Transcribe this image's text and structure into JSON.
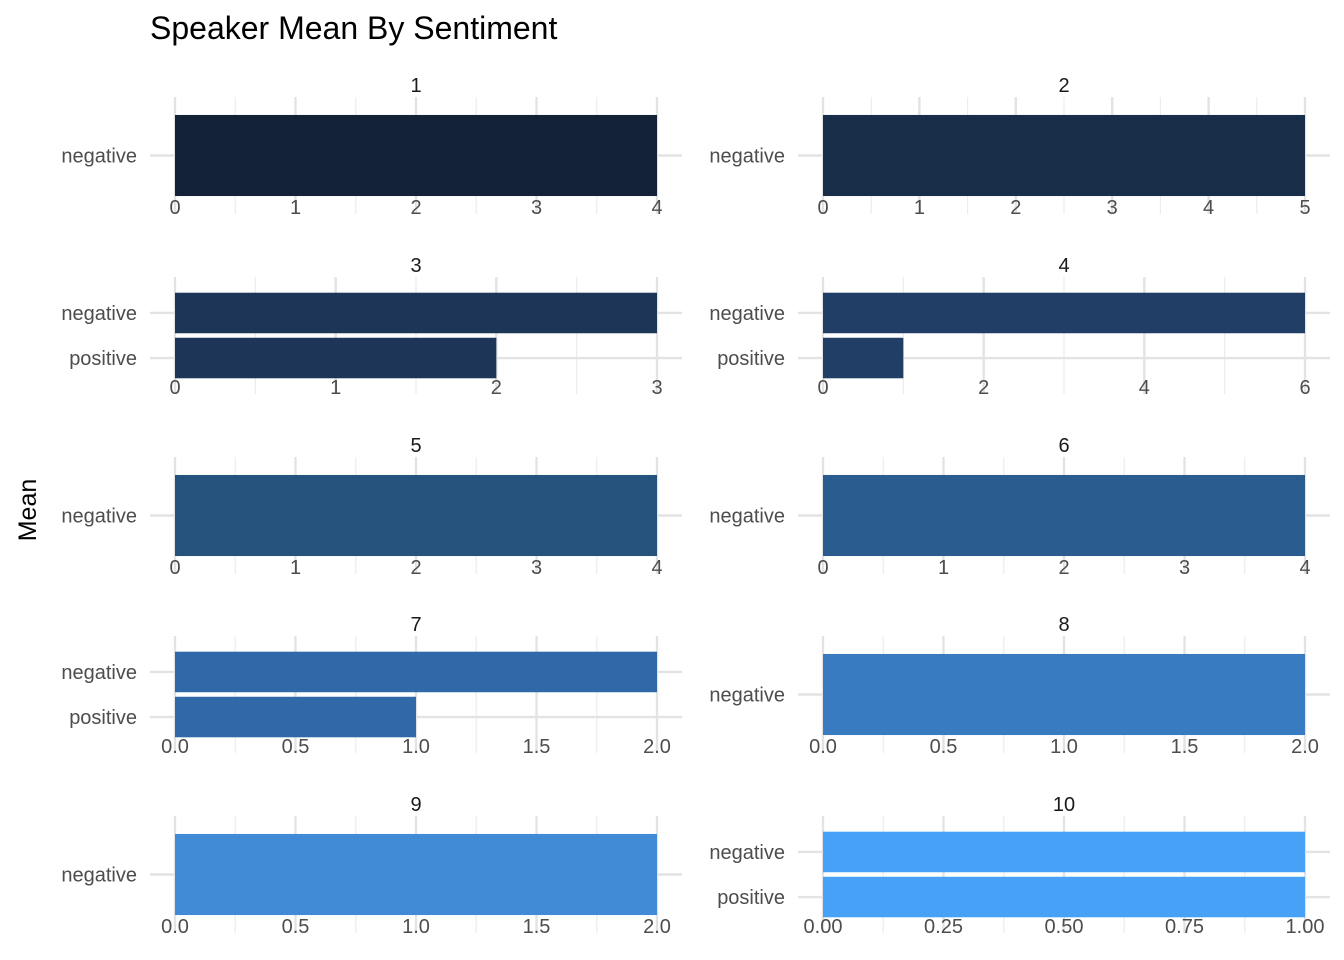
{
  "chart_data": {
    "type": "bar",
    "orientation": "horizontal",
    "title": "Speaker Mean By Sentiment",
    "xlabel": "",
    "ylabel": "Mean",
    "grid": true,
    "legend": "none",
    "panels": [
      {
        "label": "1",
        "categories": [
          "negative"
        ],
        "values": [
          4
        ],
        "xlim": [
          0,
          4
        ],
        "ticks": [
          "0",
          "1",
          "2",
          "3",
          "4"
        ],
        "color": "#132236"
      },
      {
        "label": "2",
        "categories": [
          "negative"
        ],
        "values": [
          5
        ],
        "xlim": [
          0,
          5
        ],
        "ticks": [
          "0",
          "1",
          "2",
          "3",
          "4",
          "5"
        ],
        "color": "#182e48"
      },
      {
        "label": "3",
        "categories": [
          "negative",
          "positive"
        ],
        "values": [
          3,
          2
        ],
        "xlim": [
          0,
          3
        ],
        "ticks": [
          "0",
          "1",
          "2",
          "3"
        ],
        "color": "#1d3556"
      },
      {
        "label": "4",
        "categories": [
          "negative",
          "positive"
        ],
        "values": [
          6,
          1
        ],
        "xlim": [
          0,
          6
        ],
        "ticks": [
          "0",
          "2",
          "4",
          "6"
        ],
        "color": "#213f66"
      },
      {
        "label": "5",
        "categories": [
          "negative"
        ],
        "values": [
          4
        ],
        "xlim": [
          0,
          4
        ],
        "ticks": [
          "0",
          "1",
          "2",
          "3",
          "4"
        ],
        "color": "#26527e"
      },
      {
        "label": "6",
        "categories": [
          "negative"
        ],
        "values": [
          4
        ],
        "xlim": [
          0,
          4
        ],
        "ticks": [
          "0",
          "1",
          "2",
          "3",
          "4"
        ],
        "color": "#2b5c8f"
      },
      {
        "label": "7",
        "categories": [
          "negative",
          "positive"
        ],
        "values": [
          2,
          1
        ],
        "xlim": [
          0,
          2
        ],
        "ticks": [
          "0.0",
          "0.5",
          "1.0",
          "1.5",
          "2.0"
        ],
        "color": "#3068a8"
      },
      {
        "label": "8",
        "categories": [
          "negative"
        ],
        "values": [
          2
        ],
        "xlim": [
          0,
          2
        ],
        "ticks": [
          "0.0",
          "0.5",
          "1.0",
          "1.5",
          "2.0"
        ],
        "color": "#397bc1"
      },
      {
        "label": "9",
        "categories": [
          "negative"
        ],
        "values": [
          2
        ],
        "xlim": [
          0,
          2
        ],
        "ticks": [
          "0.0",
          "0.5",
          "1.0",
          "1.5",
          "2.0"
        ],
        "color": "#418bd6"
      },
      {
        "label": "10",
        "categories": [
          "negative",
          "positive"
        ],
        "values": [
          1,
          1
        ],
        "xlim": [
          0,
          1
        ],
        "ticks": [
          "0.00",
          "0.25",
          "0.50",
          "0.75",
          "1.00"
        ],
        "color": "#47a1f6"
      }
    ]
  }
}
